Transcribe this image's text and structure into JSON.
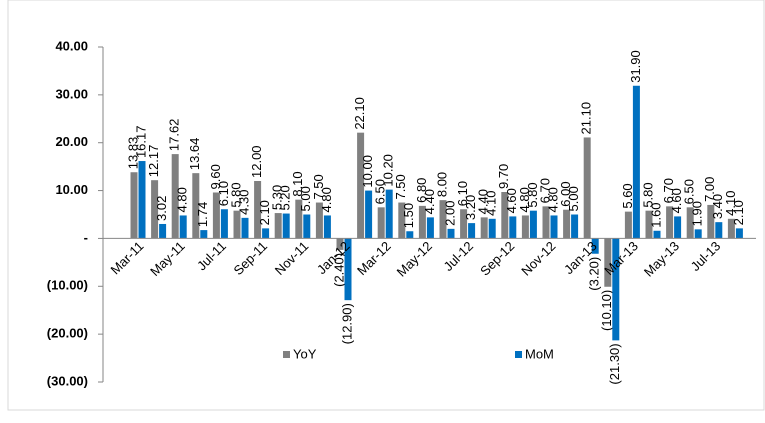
{
  "chart_data": {
    "type": "bar",
    "categories": [
      "Mar-11",
      null,
      "May-11",
      null,
      "Jul-11",
      null,
      "Sep-11",
      null,
      "Nov-11",
      null,
      "Jan-12",
      null,
      "Mar-12",
      null,
      "May-12",
      null,
      "Jul-12",
      null,
      "Sep-12",
      null,
      "Nov-12",
      null,
      "Jan-13",
      null,
      "Mar-13",
      null,
      "May-13",
      null,
      "Jul-13",
      null
    ],
    "series": [
      {
        "name": "YoY",
        "color": "#808080",
        "values": [
          13.83,
          12.17,
          17.62,
          13.64,
          9.6,
          5.8,
          12.0,
          5.3,
          8.1,
          7.5,
          -2.4,
          22.1,
          6.5,
          7.5,
          6.8,
          8.0,
          6.1,
          4.4,
          9.7,
          4.8,
          6.7,
          6.0,
          21.1,
          -10.1,
          5.6,
          5.8,
          6.7,
          6.5,
          7.0,
          4.1
        ],
        "value_labels": [
          "13.83",
          "12.17",
          "17.62",
          "13.64",
          "9.60",
          "5.80",
          "12.00",
          "5.30",
          "8.10",
          "7.50",
          "(2.40)",
          "22.10",
          "6.50",
          "7.50",
          "6.80",
          "8.00",
          "6.10",
          "4.40",
          "9.70",
          "4.80",
          "6.70",
          "6.00",
          "21.10",
          "(10.10)",
          "5.60",
          "5.80",
          "6.70",
          "6.50",
          "7.00",
          "4.10"
        ]
      },
      {
        "name": "MoM",
        "color": "#0070c0",
        "values": [
          16.17,
          3.02,
          4.8,
          1.74,
          6.1,
          4.3,
          2.1,
          5.2,
          5.0,
          4.8,
          -12.9,
          10.0,
          10.2,
          1.5,
          4.4,
          2.0,
          3.2,
          4.1,
          4.6,
          5.8,
          4.8,
          5.0,
          -3.2,
          -21.3,
          31.9,
          1.6,
          4.6,
          1.9,
          3.4,
          2.1
        ],
        "value_labels": [
          "16.17",
          "3.02",
          "4.80",
          "1.74",
          "6.10",
          "4.30",
          "2.10",
          "5.20",
          "5.00",
          "4.80",
          "(12.90)",
          "10.00",
          "10.20",
          "1.50",
          "4.40",
          "2.00",
          "3.20",
          "4.10",
          "4.60",
          "5.80",
          "4.80",
          "5.00",
          "(3.20)",
          "(21.30)",
          "31.90",
          "1.60",
          "4.60",
          "1.90",
          "3.40",
          "2.10"
        ]
      }
    ],
    "ylim": [
      -30,
      40
    ],
    "yticks": [
      {
        "value": -30,
        "label": "(30.00)"
      },
      {
        "value": -20,
        "label": "(20.00)"
      },
      {
        "value": -10,
        "label": "(10.00)"
      },
      {
        "value": 0,
        "label": "-"
      },
      {
        "value": 10,
        "label": "10.00"
      },
      {
        "value": 20,
        "label": "20.00"
      },
      {
        "value": 30,
        "label": "30.00"
      },
      {
        "value": 40,
        "label": "40.00"
      }
    ],
    "legend": "bottom"
  }
}
